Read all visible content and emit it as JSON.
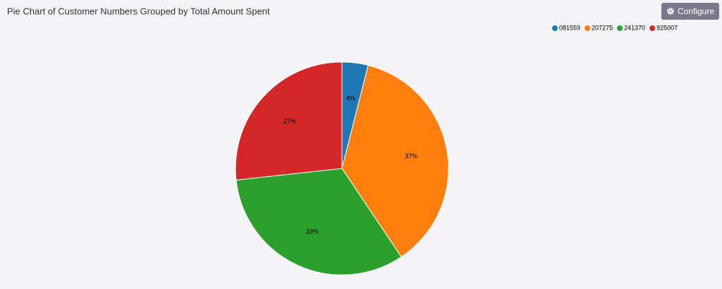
{
  "toolbar": {
    "button": "Configure"
  },
  "chart_data": {
    "type": "pie",
    "title": "Pie Chart of Customer Numbers Grouped by Total Amount Spent",
    "categories": [
      "081559",
      "207275",
      "241370",
      "925007"
    ],
    "values": [
      4,
      37,
      33,
      27
    ],
    "value_labels": [
      "4%",
      "37%",
      "33%",
      "27%"
    ],
    "colors": [
      "#1f77b4",
      "#ff7f0e",
      "#2ca02c",
      "#d62728"
    ],
    "legend": "top-right"
  }
}
